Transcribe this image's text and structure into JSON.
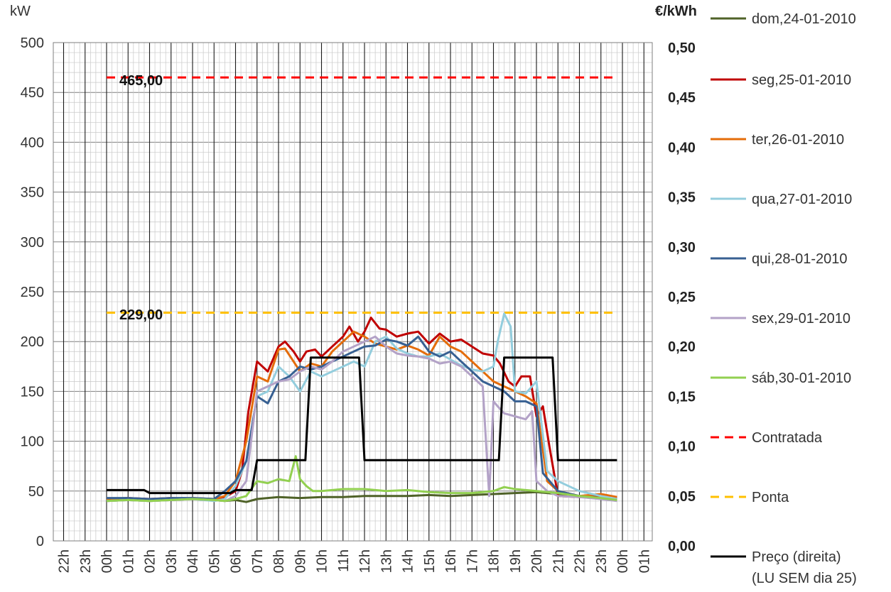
{
  "chart_data": {
    "type": "line",
    "ylabel_left": "kW",
    "ylabel_right": "€/kWh",
    "ylim_left": [
      0,
      500
    ],
    "ylim_right": [
      0,
      0.5
    ],
    "yticks_left": [
      "0",
      "50",
      "100",
      "150",
      "200",
      "250",
      "300",
      "350",
      "400",
      "450",
      "500"
    ],
    "yticks_right": [
      "0,00",
      "0,05",
      "0,10",
      "0,15",
      "0,20",
      "0,25",
      "0,30",
      "0,35",
      "0,40",
      "0,45",
      "0,50"
    ],
    "x_ticks": [
      "22h",
      "23h",
      "00h",
      "01h",
      "02h",
      "03h",
      "04h",
      "05h",
      "06h",
      "07h",
      "08h",
      "09h",
      "10h",
      "11h",
      "12h",
      "13h",
      "14h",
      "15h",
      "16h",
      "17h",
      "18h",
      "19h",
      "20h",
      "21h",
      "22h",
      "23h",
      "00h",
      "01h"
    ],
    "grid": true,
    "legend_position": "right",
    "series": [
      {
        "name": "dom,24-01-2010",
        "color": "#4f6228",
        "axis": "left",
        "style": "solid",
        "x": [
          0,
          1,
          2,
          3,
          4,
          5,
          5.5,
          6,
          6.5,
          7,
          8,
          9,
          10,
          11,
          12,
          13,
          14,
          15,
          16,
          17,
          18,
          19,
          20,
          21,
          22,
          23,
          23.75
        ],
        "y": [
          40,
          41,
          40,
          41,
          42,
          41,
          40,
          41,
          39,
          42,
          44,
          43,
          44,
          44,
          45,
          45,
          45,
          46,
          45,
          46,
          47,
          48,
          49,
          47,
          45,
          44,
          43
        ]
      },
      {
        "name": "seg,25-01-2010",
        "color": "#c00000",
        "axis": "left",
        "style": "solid",
        "x": [
          0,
          1,
          2,
          3,
          4,
          5,
          5.5,
          6,
          6.3,
          6.6,
          7,
          7.5,
          8,
          8.3,
          8.7,
          9,
          9.3,
          9.7,
          10,
          10.5,
          11,
          11.3,
          11.7,
          12,
          12.3,
          12.7,
          13,
          13.5,
          14,
          14.5,
          15,
          15.5,
          16,
          16.5,
          17,
          17.5,
          18,
          18.3,
          18.7,
          19,
          19.3,
          19.7,
          20,
          20.3,
          20.6,
          21,
          22,
          23,
          23.75
        ],
        "y": [
          42,
          43,
          42,
          43,
          42,
          42,
          44,
          50,
          70,
          130,
          180,
          170,
          195,
          200,
          190,
          180,
          190,
          192,
          185,
          195,
          205,
          215,
          200,
          210,
          224,
          213,
          212,
          205,
          208,
          210,
          198,
          208,
          200,
          202,
          195,
          188,
          186,
          178,
          160,
          155,
          165,
          165,
          125,
          135,
          95,
          45,
          44,
          44,
          44
        ]
      },
      {
        "name": "ter,26-01-2010",
        "color": "#e46c0a",
        "axis": "left",
        "style": "solid",
        "x": [
          0,
          1,
          2,
          3,
          4,
          5,
          5.5,
          6,
          6.5,
          7,
          7.5,
          8,
          8.3,
          8.7,
          9,
          9.5,
          10,
          10.5,
          11,
          11.5,
          12,
          12.5,
          13,
          13.5,
          14,
          14.5,
          15,
          15.5,
          16,
          16.5,
          17,
          17.5,
          18,
          18.5,
          19,
          19.5,
          20,
          20.5,
          21,
          22,
          23,
          23.75
        ],
        "y": [
          41,
          42,
          41,
          42,
          43,
          42,
          45,
          60,
          100,
          165,
          160,
          192,
          193,
          180,
          170,
          178,
          175,
          190,
          200,
          210,
          205,
          198,
          195,
          192,
          196,
          192,
          186,
          205,
          195,
          190,
          180,
          170,
          160,
          155,
          150,
          145,
          138,
          60,
          50,
          45,
          47,
          44
        ]
      },
      {
        "name": "qua,27-01-2010",
        "color": "#93cddd",
        "axis": "left",
        "style": "solid",
        "x": [
          0,
          1,
          2,
          3,
          4,
          5,
          5.5,
          6,
          6.5,
          7,
          7.5,
          8,
          8.5,
          9,
          9.5,
          10,
          10.5,
          11,
          11.5,
          12,
          12.5,
          13,
          13.5,
          14,
          14.5,
          15,
          15.5,
          16,
          16.5,
          17,
          17.5,
          18,
          18.2,
          18.5,
          18.8,
          19,
          19.5,
          20,
          20.5,
          21,
          22,
          23,
          23.75
        ],
        "y": [
          40,
          41,
          40,
          41,
          42,
          40,
          42,
          55,
          80,
          145,
          150,
          175,
          165,
          150,
          170,
          165,
          170,
          175,
          180,
          175,
          200,
          205,
          193,
          188,
          185,
          185,
          188,
          182,
          176,
          172,
          170,
          175,
          200,
          228,
          215,
          150,
          148,
          160,
          70,
          60,
          50,
          45,
          42
        ]
      },
      {
        "name": "qui,28-01-2010",
        "color": "#376092",
        "axis": "left",
        "style": "solid",
        "x": [
          0,
          1,
          2,
          3,
          4,
          5,
          5.5,
          6,
          6.5,
          7,
          7.5,
          8,
          8.5,
          9,
          9.5,
          10,
          10.5,
          11,
          11.5,
          12,
          12.5,
          13,
          13.5,
          14,
          14.5,
          15,
          15.5,
          16,
          16.5,
          17,
          17.5,
          18,
          18.5,
          19,
          19.5,
          20,
          20.3,
          21,
          22,
          23,
          23.75
        ],
        "y": [
          43,
          43,
          42,
          43,
          43,
          42,
          50,
          60,
          80,
          145,
          138,
          160,
          165,
          175,
          172,
          175,
          180,
          185,
          190,
          195,
          196,
          202,
          200,
          196,
          205,
          190,
          185,
          190,
          180,
          170,
          160,
          155,
          150,
          140,
          140,
          135,
          68,
          50,
          45,
          42,
          41
        ]
      },
      {
        "name": "sex,29-01-2010",
        "color": "#b3a2c7",
        "axis": "left",
        "style": "solid",
        "x": [
          0,
          1,
          2,
          3,
          4,
          5,
          5.5,
          6,
          6.5,
          7,
          7.5,
          8,
          8.5,
          9,
          9.5,
          10,
          10.5,
          11,
          11.5,
          12,
          12.5,
          13,
          13.5,
          14,
          14.5,
          15,
          15.5,
          16,
          16.5,
          17,
          17.5,
          17.8,
          18,
          18.2,
          18.5,
          19,
          19.5,
          19.8,
          20,
          20.5,
          21,
          22,
          23,
          23.75
        ],
        "y": [
          40,
          41,
          40,
          41,
          42,
          41,
          40,
          45,
          60,
          150,
          155,
          160,
          162,
          170,
          175,
          172,
          180,
          190,
          195,
          200,
          205,
          195,
          188,
          186,
          185,
          183,
          178,
          180,
          175,
          165,
          155,
          45,
          140,
          135,
          128,
          125,
          122,
          130,
          60,
          50,
          45,
          44,
          42,
          40
        ]
      },
      {
        "name": "sáb,30-01-2010",
        "color": "#92d050",
        "axis": "left",
        "style": "solid",
        "x": [
          0,
          1,
          2,
          3,
          4,
          5,
          5.5,
          6,
          6.5,
          7,
          7.5,
          8,
          8.5,
          8.8,
          9,
          9.3,
          9.6,
          10,
          11,
          12,
          13,
          14,
          15,
          16,
          17,
          18,
          18.5,
          19,
          20,
          21,
          22,
          23,
          23.75
        ],
        "y": [
          40,
          41,
          40,
          41,
          42,
          41,
          40,
          42,
          45,
          60,
          58,
          62,
          60,
          85,
          62,
          55,
          50,
          50,
          52,
          52,
          50,
          51,
          49,
          48,
          48,
          50,
          54,
          52,
          50,
          48,
          45,
          43,
          41
        ]
      },
      {
        "name": "Contratada",
        "color": "#ff0000",
        "axis": "left",
        "style": "dashed",
        "x": [
          0,
          23.75
        ],
        "y": [
          465,
          465
        ]
      },
      {
        "name": "Ponta",
        "color": "#ffc000",
        "axis": "left",
        "style": "dashed",
        "x": [
          0,
          23.75
        ],
        "y": [
          229,
          229
        ]
      },
      {
        "name": "Preço (direita) (LU SEM dia 25)",
        "color": "#000000",
        "axis": "right",
        "style": "solid",
        "x": [
          0,
          1.75,
          2,
          5.75,
          6,
          6.75,
          7,
          9.25,
          9.5,
          11.75,
          12,
          18.25,
          18.5,
          20.75,
          21,
          23.75
        ],
        "y": [
          0.051,
          0.051,
          0.048,
          0.048,
          0.051,
          0.051,
          0.081,
          0.081,
          0.184,
          0.184,
          0.081,
          0.081,
          0.184,
          0.184,
          0.081,
          0.081
        ]
      }
    ],
    "annotations": [
      "465,00",
      "229,00"
    ]
  }
}
